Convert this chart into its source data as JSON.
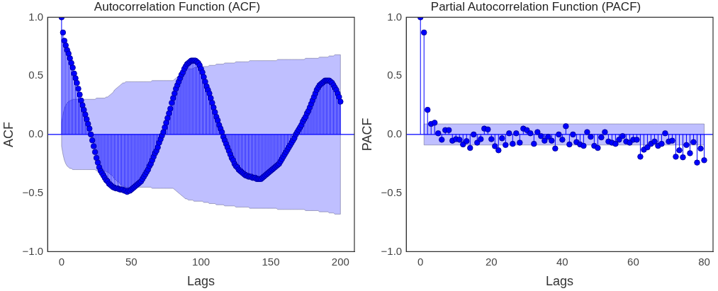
{
  "chart_data": [
    {
      "type": "lollipop",
      "title": "Autocorrelation Function (ACF)",
      "xlabel": "Lags",
      "ylabel": "ACF",
      "x": [
        0,
        1,
        2,
        3,
        4,
        5,
        6,
        7,
        8,
        9,
        10,
        11,
        12,
        13,
        14,
        15,
        16,
        17,
        18,
        19,
        20,
        21,
        22,
        23,
        24,
        25,
        26,
        27,
        28,
        29,
        30,
        31,
        32,
        33,
        34,
        35,
        36,
        37,
        38,
        39,
        40,
        41,
        42,
        43,
        44,
        45,
        46,
        47,
        48,
        49,
        50,
        51,
        52,
        53,
        54,
        55,
        56,
        57,
        58,
        59,
        60,
        61,
        62,
        63,
        64,
        65,
        66,
        67,
        68,
        69,
        70,
        71,
        72,
        73,
        74,
        75,
        76,
        77,
        78,
        79,
        80,
        81,
        82,
        83,
        84,
        85,
        86,
        87,
        88,
        89,
        90,
        91,
        92,
        93,
        94,
        95,
        96,
        97,
        98,
        99,
        100,
        101,
        102,
        103,
        104,
        105,
        106,
        107,
        108,
        109,
        110,
        111,
        112,
        113,
        114,
        115,
        116,
        117,
        118,
        119,
        120,
        121,
        122,
        123,
        124,
        125,
        126,
        127,
        128,
        129,
        130,
        131,
        132,
        133,
        134,
        135,
        136,
        137,
        138,
        139,
        140,
        141,
        142,
        143,
        144,
        145,
        146,
        147,
        148,
        149,
        150,
        151,
        152,
        153,
        154,
        155,
        156,
        157,
        158,
        159,
        160,
        161,
        162,
        163,
        164,
        165,
        166,
        167,
        168,
        169,
        170,
        171,
        172,
        173,
        174,
        175,
        176,
        177,
        178,
        179,
        180,
        181,
        182,
        183,
        184,
        185,
        186,
        187,
        188,
        189,
        190,
        191,
        192,
        193,
        194,
        195,
        196,
        197,
        198,
        199,
        200
      ],
      "series": [
        {
          "color": "#0000ff",
          "values": [
            1.0,
            0.87,
            0.8,
            0.76,
            0.72,
            0.69,
            0.65,
            0.61,
            0.57,
            0.52,
            0.48,
            0.44,
            0.39,
            0.34,
            0.29,
            0.25,
            0.21,
            0.17,
            0.13,
            0.09,
            0.05,
            0.0,
            -0.05,
            -0.1,
            -0.15,
            -0.2,
            -0.24,
            -0.28,
            -0.31,
            -0.33,
            -0.35,
            -0.37,
            -0.39,
            -0.4,
            -0.42,
            -0.43,
            -0.44,
            -0.45,
            -0.455,
            -0.46,
            -0.46,
            -0.465,
            -0.47,
            -0.47,
            -0.47,
            -0.48,
            -0.48,
            -0.49,
            -0.48,
            -0.48,
            -0.47,
            -0.46,
            -0.45,
            -0.44,
            -0.43,
            -0.42,
            -0.41,
            -0.4,
            -0.38,
            -0.36,
            -0.34,
            -0.32,
            -0.3,
            -0.27,
            -0.25,
            -0.22,
            -0.19,
            -0.16,
            -0.14,
            -0.11,
            -0.07,
            -0.04,
            -0.01,
            0.02,
            0.06,
            0.1,
            0.14,
            0.18,
            0.22,
            0.27,
            0.31,
            0.35,
            0.39,
            0.42,
            0.45,
            0.48,
            0.51,
            0.53,
            0.56,
            0.58,
            0.6,
            0.61,
            0.62,
            0.63,
            0.63,
            0.63,
            0.63,
            0.62,
            0.61,
            0.59,
            0.56,
            0.53,
            0.49,
            0.45,
            0.41,
            0.38,
            0.35,
            0.31,
            0.27,
            0.23,
            0.19,
            0.15,
            0.12,
            0.08,
            0.05,
            0.02,
            -0.02,
            -0.05,
            -0.08,
            -0.11,
            -0.14,
            -0.17,
            -0.2,
            -0.22,
            -0.25,
            -0.27,
            -0.28,
            -0.3,
            -0.31,
            -0.32,
            -0.33,
            -0.34,
            -0.35,
            -0.35,
            -0.36,
            -0.36,
            -0.36,
            -0.37,
            -0.37,
            -0.37,
            -0.38,
            -0.38,
            -0.38,
            -0.38,
            -0.37,
            -0.36,
            -0.35,
            -0.34,
            -0.33,
            -0.32,
            -0.31,
            -0.3,
            -0.29,
            -0.28,
            -0.27,
            -0.26,
            -0.25,
            -0.23,
            -0.21,
            -0.19,
            -0.17,
            -0.15,
            -0.13,
            -0.11,
            -0.09,
            -0.07,
            -0.05,
            -0.03,
            0.0,
            0.02,
            0.04,
            0.06,
            0.08,
            0.11,
            0.13,
            0.15,
            0.18,
            0.2,
            0.23,
            0.26,
            0.29,
            0.32,
            0.35,
            0.38,
            0.4,
            0.42,
            0.43,
            0.44,
            0.45,
            0.46,
            0.46,
            0.46,
            0.46,
            0.45,
            0.44,
            0.42,
            0.4,
            0.38,
            0.35,
            0.32,
            0.28
          ],
          "upper": [
            0.1,
            0.17,
            0.22,
            0.25,
            0.27,
            0.28,
            0.29,
            0.29,
            0.3,
            0.3,
            0.3,
            0.3,
            0.3,
            0.3,
            0.3,
            0.3,
            0.3,
            0.3,
            0.3,
            0.3,
            0.3,
            0.3,
            0.3,
            0.3,
            0.3,
            0.31,
            0.31,
            0.31,
            0.31,
            0.31,
            0.31,
            0.31,
            0.32,
            0.32,
            0.33,
            0.34,
            0.35,
            0.36,
            0.38,
            0.39,
            0.4,
            0.41,
            0.42,
            0.43,
            0.44,
            0.44,
            0.45,
            0.45,
            0.45,
            0.45,
            0.45,
            0.45,
            0.45,
            0.45,
            0.45,
            0.45,
            0.45,
            0.45,
            0.45,
            0.45,
            0.45,
            0.45,
            0.45,
            0.45,
            0.45,
            0.46,
            0.46,
            0.46,
            0.46,
            0.46,
            0.46,
            0.46,
            0.46,
            0.46,
            0.46,
            0.46,
            0.46,
            0.46,
            0.46,
            0.46,
            0.46,
            0.47,
            0.48,
            0.49,
            0.5,
            0.51,
            0.52,
            0.53,
            0.54,
            0.55,
            0.55,
            0.56,
            0.56,
            0.56,
            0.56,
            0.57,
            0.57,
            0.57,
            0.57,
            0.57,
            0.57,
            0.57,
            0.58,
            0.58,
            0.58,
            0.58,
            0.59,
            0.59,
            0.59,
            0.59,
            0.59,
            0.6,
            0.6,
            0.6,
            0.6,
            0.6,
            0.6,
            0.61,
            0.61,
            0.61,
            0.61,
            0.61,
            0.61,
            0.61,
            0.61,
            0.62,
            0.62,
            0.62,
            0.62,
            0.62,
            0.62,
            0.62,
            0.62,
            0.62,
            0.62,
            0.63,
            0.63,
            0.63,
            0.63,
            0.63,
            0.63,
            0.63,
            0.63,
            0.63,
            0.63,
            0.63,
            0.63,
            0.63,
            0.63,
            0.63,
            0.63,
            0.63,
            0.63,
            0.63,
            0.63,
            0.64,
            0.64,
            0.64,
            0.64,
            0.64,
            0.64,
            0.64,
            0.64,
            0.64,
            0.64,
            0.64,
            0.64,
            0.64,
            0.64,
            0.64,
            0.64,
            0.64,
            0.64,
            0.64,
            0.64,
            0.65,
            0.65,
            0.65,
            0.65,
            0.65,
            0.65,
            0.65,
            0.65,
            0.65,
            0.65,
            0.66,
            0.66,
            0.66,
            0.66,
            0.66,
            0.66,
            0.66,
            0.67,
            0.67,
            0.67,
            0.67,
            0.68,
            0.68,
            0.68,
            0.68,
            0.68
          ],
          "lower": [
            -0.1,
            -0.17,
            -0.22,
            -0.25,
            -0.27,
            -0.28,
            -0.29,
            -0.29,
            -0.3,
            -0.3,
            -0.3,
            -0.3,
            -0.3,
            -0.3,
            -0.3,
            -0.3,
            -0.3,
            -0.3,
            -0.3,
            -0.3,
            -0.3,
            -0.3,
            -0.3,
            -0.3,
            -0.3,
            -0.31,
            -0.31,
            -0.31,
            -0.31,
            -0.31,
            -0.31,
            -0.31,
            -0.32,
            -0.32,
            -0.33,
            -0.34,
            -0.35,
            -0.36,
            -0.38,
            -0.39,
            -0.4,
            -0.41,
            -0.42,
            -0.43,
            -0.44,
            -0.44,
            -0.45,
            -0.45,
            -0.45,
            -0.45,
            -0.45,
            -0.45,
            -0.45,
            -0.45,
            -0.45,
            -0.45,
            -0.45,
            -0.45,
            -0.45,
            -0.45,
            -0.45,
            -0.45,
            -0.45,
            -0.45,
            -0.45,
            -0.46,
            -0.46,
            -0.46,
            -0.46,
            -0.46,
            -0.46,
            -0.46,
            -0.46,
            -0.46,
            -0.46,
            -0.46,
            -0.46,
            -0.46,
            -0.46,
            -0.46,
            -0.46,
            -0.47,
            -0.48,
            -0.49,
            -0.5,
            -0.51,
            -0.52,
            -0.53,
            -0.54,
            -0.55,
            -0.55,
            -0.56,
            -0.56,
            -0.56,
            -0.56,
            -0.57,
            -0.57,
            -0.57,
            -0.57,
            -0.57,
            -0.57,
            -0.57,
            -0.58,
            -0.58,
            -0.58,
            -0.58,
            -0.59,
            -0.59,
            -0.59,
            -0.59,
            -0.59,
            -0.6,
            -0.6,
            -0.6,
            -0.6,
            -0.6,
            -0.6,
            -0.61,
            -0.61,
            -0.61,
            -0.61,
            -0.61,
            -0.61,
            -0.61,
            -0.61,
            -0.62,
            -0.62,
            -0.62,
            -0.62,
            -0.62,
            -0.62,
            -0.62,
            -0.62,
            -0.62,
            -0.62,
            -0.63,
            -0.63,
            -0.63,
            -0.63,
            -0.63,
            -0.63,
            -0.63,
            -0.63,
            -0.63,
            -0.63,
            -0.63,
            -0.63,
            -0.63,
            -0.63,
            -0.63,
            -0.63,
            -0.63,
            -0.63,
            -0.63,
            -0.63,
            -0.64,
            -0.64,
            -0.64,
            -0.64,
            -0.64,
            -0.64,
            -0.64,
            -0.64,
            -0.64,
            -0.64,
            -0.64,
            -0.64,
            -0.64,
            -0.64,
            -0.64,
            -0.64,
            -0.64,
            -0.64,
            -0.64,
            -0.64,
            -0.65,
            -0.65,
            -0.65,
            -0.65,
            -0.65,
            -0.65,
            -0.65,
            -0.65,
            -0.65,
            -0.65,
            -0.66,
            -0.66,
            -0.66,
            -0.66,
            -0.66,
            -0.66,
            -0.66,
            -0.67,
            -0.67,
            -0.67,
            -0.67,
            -0.68,
            -0.68,
            -0.68,
            -0.68,
            -0.68
          ]
        }
      ],
      "xlim": [
        -10,
        210
      ],
      "xticks": [
        0,
        50,
        100,
        150,
        200
      ],
      "ylim": [
        -1,
        1
      ],
      "yticks": [
        {
          "value": -1,
          "label": "−1.0"
        },
        {
          "value": -0.5,
          "label": "−0.5"
        },
        {
          "value": 0,
          "label": "0.0"
        },
        {
          "value": 0.5,
          "label": "0.5"
        },
        {
          "value": 1,
          "label": "1.0"
        }
      ],
      "ref_lines": [
        {
          "axis": "y",
          "value": 0,
          "color": "#0000ff"
        }
      ],
      "marker": "circle",
      "grid": false,
      "legend": false
    },
    {
      "type": "lollipop",
      "title": "Partial Autocorrelation Function (PACF)",
      "xlabel": "Lags",
      "ylabel": "PACF",
      "x": [
        0,
        1,
        2,
        3,
        4,
        5,
        6,
        7,
        8,
        9,
        10,
        11,
        12,
        13,
        14,
        15,
        16,
        17,
        18,
        19,
        20,
        21,
        22,
        23,
        24,
        25,
        26,
        27,
        28,
        29,
        30,
        31,
        32,
        33,
        34,
        35,
        36,
        37,
        38,
        39,
        40,
        41,
        42,
        43,
        44,
        45,
        46,
        47,
        48,
        49,
        50,
        51,
        52,
        53,
        54,
        55,
        56,
        57,
        58,
        59,
        60,
        61,
        62,
        63,
        64,
        65,
        66,
        67,
        68,
        69,
        70,
        71,
        72,
        73,
        74,
        75,
        76,
        77,
        78,
        79,
        80
      ],
      "series": [
        {
          "color": "#0000ff",
          "values": [
            1.0,
            0.87,
            0.21,
            0.09,
            0.1,
            0.01,
            -0.045,
            0.037,
            0.037,
            -0.053,
            -0.04,
            -0.045,
            -0.085,
            -0.057,
            -0.115,
            0.0,
            -0.07,
            -0.04,
            0.05,
            0.043,
            -0.04,
            -0.1,
            -0.135,
            -0.033,
            -0.09,
            0.01,
            -0.08,
            0.01,
            -0.07,
            0.05,
            0.037,
            0.01,
            -0.08,
            0.02,
            -0.014,
            -0.053,
            -0.02,
            -0.053,
            -0.12,
            0.0,
            -0.045,
            0.07,
            -0.085,
            0.0,
            -0.065,
            -0.085,
            -0.097,
            0.02,
            -0.02,
            -0.097,
            -0.115,
            -0.025,
            0.02,
            -0.06,
            -0.07,
            -0.08,
            -0.045,
            -0.014,
            -0.06,
            -0.07,
            -0.045,
            -0.045,
            -0.19,
            -0.13,
            -0.11,
            -0.08,
            -0.06,
            -0.097,
            -0.08,
            0.01,
            -0.06,
            -0.053,
            -0.19,
            -0.135,
            -0.195,
            -0.09,
            -0.16,
            -0.065,
            -0.24,
            -0.12,
            -0.22
          ],
          "upper": [
            null,
            0.09,
            0.09,
            0.09,
            0.09,
            0.09,
            0.09,
            0.09,
            0.09,
            0.09,
            0.09,
            0.09,
            0.09,
            0.09,
            0.09,
            0.09,
            0.09,
            0.09,
            0.09,
            0.09,
            0.09,
            0.09,
            0.09,
            0.09,
            0.09,
            0.09,
            0.09,
            0.09,
            0.09,
            0.09,
            0.09,
            0.09,
            0.09,
            0.09,
            0.09,
            0.09,
            0.09,
            0.09,
            0.09,
            0.09,
            0.09,
            0.09,
            0.09,
            0.09,
            0.09,
            0.09,
            0.09,
            0.09,
            0.09,
            0.09,
            0.09,
            0.09,
            0.09,
            0.09,
            0.09,
            0.09,
            0.09,
            0.09,
            0.09,
            0.09,
            0.09,
            0.09,
            0.09,
            0.09,
            0.09,
            0.09,
            0.09,
            0.09,
            0.09,
            0.09,
            0.09,
            0.09,
            0.09,
            0.09,
            0.09,
            0.09,
            0.09,
            0.09,
            0.09,
            0.09,
            0.09
          ],
          "lower": [
            null,
            -0.09,
            -0.09,
            -0.09,
            -0.09,
            -0.09,
            -0.09,
            -0.09,
            -0.09,
            -0.09,
            -0.09,
            -0.09,
            -0.09,
            -0.09,
            -0.09,
            -0.09,
            -0.09,
            -0.09,
            -0.09,
            -0.09,
            -0.09,
            -0.09,
            -0.09,
            -0.09,
            -0.09,
            -0.09,
            -0.09,
            -0.09,
            -0.09,
            -0.09,
            -0.09,
            -0.09,
            -0.09,
            -0.09,
            -0.09,
            -0.09,
            -0.09,
            -0.09,
            -0.09,
            -0.09,
            -0.09,
            -0.09,
            -0.09,
            -0.09,
            -0.09,
            -0.09,
            -0.09,
            -0.09,
            -0.09,
            -0.09,
            -0.09,
            -0.09,
            -0.09,
            -0.09,
            -0.09,
            -0.09,
            -0.09,
            -0.09,
            -0.09,
            -0.09,
            -0.09,
            -0.09,
            -0.09,
            -0.09,
            -0.09,
            -0.09,
            -0.09,
            -0.09,
            -0.09,
            -0.09,
            -0.09,
            -0.09,
            -0.09,
            -0.09,
            -0.09,
            -0.09,
            -0.09,
            -0.09,
            -0.09,
            -0.09,
            -0.09
          ]
        }
      ],
      "xlim": [
        -4,
        82.5
      ],
      "xticks": [
        0,
        20,
        40,
        60,
        80
      ],
      "ylim": [
        -1,
        1
      ],
      "yticks": [
        {
          "value": -1,
          "label": "−1.0"
        },
        {
          "value": -0.5,
          "label": "−0.5"
        },
        {
          "value": 0,
          "label": "0.0"
        },
        {
          "value": 0.5,
          "label": "0.5"
        },
        {
          "value": 1,
          "label": "1.0"
        }
      ],
      "ref_lines": [
        {
          "axis": "y",
          "value": 0,
          "color": "#0000ff"
        }
      ],
      "marker": "circle",
      "grid": false,
      "legend": false
    }
  ]
}
